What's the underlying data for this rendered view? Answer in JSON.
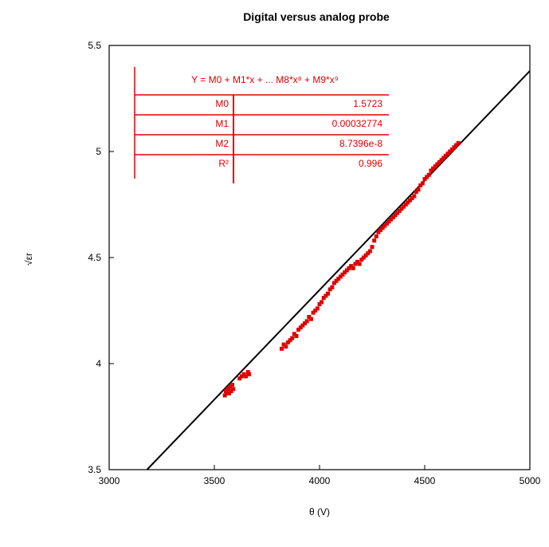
{
  "chart_data": {
    "type": "scatter",
    "title": "Digital versus analog probe",
    "xlabel": "θ (V)",
    "ylabel": "√εr",
    "xlim": [
      3000,
      5000
    ],
    "ylim": [
      3.5,
      5.5
    ],
    "x_ticks": [
      "3000",
      "3500",
      "4000",
      "4500",
      "5000"
    ],
    "y_ticks": [
      "3.5",
      "4",
      "4.5",
      "5",
      "5.5"
    ],
    "grid": false,
    "legend": "none",
    "colors": {
      "points": "#e00000",
      "fit_line": "#000000",
      "table": "#e00000",
      "axes": "#000000"
    },
    "series": [
      {
        "values": [
          [
            3550,
            3.85
          ],
          [
            3555,
            3.87
          ],
          [
            3560,
            3.86
          ],
          [
            3565,
            3.88
          ],
          [
            3570,
            3.86
          ],
          [
            3575,
            3.89
          ],
          [
            3580,
            3.87
          ],
          [
            3585,
            3.9
          ],
          [
            3590,
            3.88
          ],
          [
            3620,
            3.93
          ],
          [
            3630,
            3.94
          ],
          [
            3640,
            3.95
          ],
          [
            3650,
            3.94
          ],
          [
            3660,
            3.96
          ],
          [
            3665,
            3.95
          ],
          [
            3820,
            4.07
          ],
          [
            3830,
            4.09
          ],
          [
            3840,
            4.08
          ],
          [
            3850,
            4.1
          ],
          [
            3860,
            4.11
          ],
          [
            3870,
            4.12
          ],
          [
            3880,
            4.14
          ],
          [
            3890,
            4.13
          ],
          [
            3900,
            4.16
          ],
          [
            3910,
            4.17
          ],
          [
            3920,
            4.18
          ],
          [
            3930,
            4.19
          ],
          [
            3940,
            4.2
          ],
          [
            3950,
            4.22
          ],
          [
            3960,
            4.21
          ],
          [
            3970,
            4.24
          ],
          [
            3980,
            4.25
          ],
          [
            3990,
            4.26
          ],
          [
            4000,
            4.28
          ],
          [
            4010,
            4.29
          ],
          [
            4020,
            4.31
          ],
          [
            4030,
            4.32
          ],
          [
            4040,
            4.33
          ],
          [
            4050,
            4.35
          ],
          [
            4060,
            4.36
          ],
          [
            4070,
            4.38
          ],
          [
            4080,
            4.39
          ],
          [
            4090,
            4.4
          ],
          [
            4100,
            4.41
          ],
          [
            4110,
            4.42
          ],
          [
            4120,
            4.43
          ],
          [
            4130,
            4.44
          ],
          [
            4140,
            4.45
          ],
          [
            4150,
            4.46
          ],
          [
            4160,
            4.45
          ],
          [
            4170,
            4.47
          ],
          [
            4180,
            4.48
          ],
          [
            4190,
            4.47
          ],
          [
            4200,
            4.49
          ],
          [
            4210,
            4.5
          ],
          [
            4220,
            4.51
          ],
          [
            4230,
            4.52
          ],
          [
            4240,
            4.53
          ],
          [
            4250,
            4.55
          ],
          [
            4260,
            4.58
          ],
          [
            4270,
            4.6
          ],
          [
            4280,
            4.62
          ],
          [
            4290,
            4.63
          ],
          [
            4300,
            4.64
          ],
          [
            4310,
            4.65
          ],
          [
            4320,
            4.66
          ],
          [
            4330,
            4.67
          ],
          [
            4340,
            4.68
          ],
          [
            4350,
            4.69
          ],
          [
            4360,
            4.7
          ],
          [
            4370,
            4.71
          ],
          [
            4380,
            4.72
          ],
          [
            4390,
            4.73
          ],
          [
            4400,
            4.74
          ],
          [
            4410,
            4.75
          ],
          [
            4420,
            4.76
          ],
          [
            4430,
            4.77
          ],
          [
            4440,
            4.78
          ],
          [
            4450,
            4.79
          ],
          [
            4460,
            4.81
          ],
          [
            4470,
            4.82
          ],
          [
            4480,
            4.84
          ],
          [
            4490,
            4.85
          ],
          [
            4500,
            4.87
          ],
          [
            4510,
            4.88
          ],
          [
            4520,
            4.89
          ],
          [
            4530,
            4.91
          ],
          [
            4540,
            4.92
          ],
          [
            4550,
            4.93
          ],
          [
            4560,
            4.94
          ],
          [
            4570,
            4.95
          ],
          [
            4580,
            4.96
          ],
          [
            4590,
            4.97
          ],
          [
            4600,
            4.98
          ],
          [
            4610,
            4.99
          ],
          [
            4620,
            5.0
          ],
          [
            4630,
            5.01
          ],
          [
            4640,
            5.02
          ],
          [
            4650,
            5.03
          ],
          [
            4660,
            5.04
          ]
        ]
      }
    ],
    "fit_line": {
      "x": [
        3180,
        5000
      ],
      "y": [
        3.5,
        5.38
      ]
    },
    "fit_table": {
      "equation": "Y = M0 + M1*x + ... M8*x⁸ + M9*x⁹",
      "rows": [
        {
          "label": "M0",
          "value": "1.5723"
        },
        {
          "label": "M1",
          "value": "0.00032774"
        },
        {
          "label": "M2",
          "value": "8.7396e-8"
        },
        {
          "label": "R²",
          "value": "0.996"
        }
      ]
    }
  }
}
